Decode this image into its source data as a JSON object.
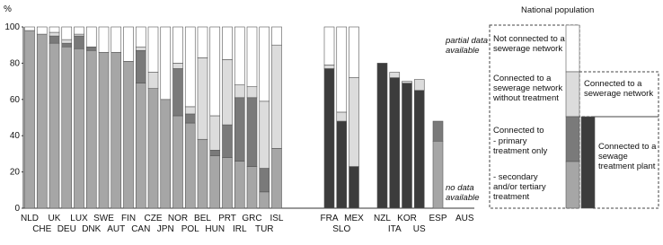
{
  "chart_data": {
    "type": "stacked-bar",
    "y_label": "%",
    "categories": [
      "NLD",
      "CHE",
      "UK",
      "DEU",
      "LUX",
      "DNK",
      "SWE",
      "AUT",
      "FIN",
      "CAN",
      "CZE",
      "JPN",
      "NOR",
      "POL",
      "BEL",
      "HUN",
      "PRT",
      "IRL",
      "GRC",
      "TUR",
      "ISL",
      null,
      "FRA",
      "SLO",
      "MEX",
      null,
      "NZL",
      "ITA",
      "KOR",
      "US",
      "ESP",
      "AUS"
    ],
    "series": [
      {
        "name": "Connected to a sewage treatment plant",
        "color": "#3c3c3c",
        "values": [
          0,
          0,
          0,
          0,
          0,
          0,
          0,
          0,
          0,
          0,
          0,
          0,
          0,
          0,
          0,
          0,
          0,
          0,
          0,
          0,
          0,
          null,
          77,
          48,
          23,
          null,
          80,
          72,
          69,
          65,
          0,
          null
        ]
      },
      {
        "name": "- secondary and/or tertiary treatment",
        "color": "#a6a6a6",
        "values": [
          98,
          96,
          91,
          89,
          88,
          87,
          86,
          86,
          81,
          69,
          66,
          60,
          51,
          47,
          38,
          29,
          28,
          26,
          23,
          9,
          33,
          null,
          0,
          0,
          0,
          null,
          0,
          0,
          0,
          0,
          37,
          null
        ]
      },
      {
        "name": "- primary treatment only",
        "color": "#7a7a7a",
        "values": [
          0,
          0,
          4,
          2,
          7,
          2,
          0,
          0,
          0,
          18,
          0,
          0,
          26,
          5,
          0,
          3,
          18,
          35,
          38,
          13,
          0,
          null,
          0,
          0,
          0,
          null,
          0,
          0,
          0,
          0,
          11,
          null
        ]
      },
      {
        "name": "Connected to a sewerage network without treatment",
        "color": "#dcdcdc",
        "values": [
          0,
          0,
          2,
          2,
          1,
          0,
          0,
          0,
          0,
          2,
          9,
          0,
          3,
          4,
          45,
          19,
          36,
          7,
          6,
          37,
          57,
          null,
          2,
          5,
          49,
          null,
          0,
          3,
          1,
          6,
          0,
          null
        ]
      },
      {
        "name": "Not connected to a sewerage network",
        "color": "#ffffff",
        "values": [
          2,
          4,
          3,
          7,
          4,
          11,
          14,
          14,
          19,
          11,
          25,
          40,
          20,
          44,
          17,
          49,
          18,
          32,
          33,
          41,
          10,
          null,
          21,
          47,
          28,
          null,
          0,
          0,
          0,
          0,
          0,
          null
        ]
      }
    ],
    "ylim": [
      0,
      100
    ],
    "yticks": [
      0,
      20,
      40,
      60,
      80,
      100
    ],
    "annotations": [
      "partial data available",
      "no data available"
    ],
    "legend_title": "National population",
    "legend_notes": [
      "Connected to a sewerage network",
      "Connected to"
    ]
  }
}
